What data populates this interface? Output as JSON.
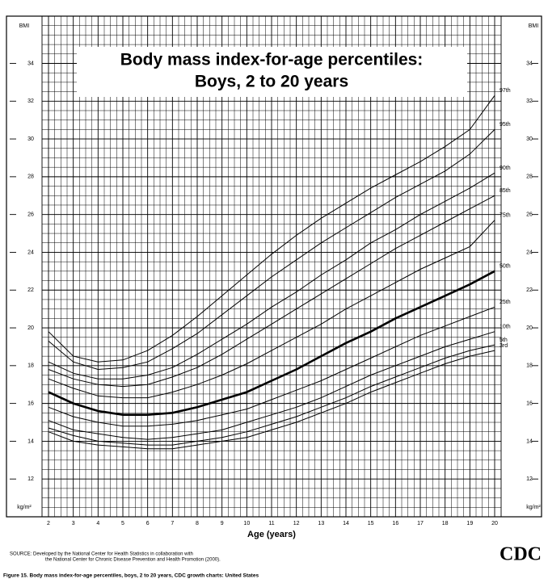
{
  "chart_data": {
    "type": "line",
    "title": [
      "Body mass index-for-age percentiles:",
      "Boys, 2 to 20 years"
    ],
    "xlabel": "Age (years)",
    "ylabel": "BMI",
    "yunit": "kg/m²",
    "x": [
      2,
      3,
      4,
      5,
      6,
      7,
      8,
      9,
      10,
      11,
      12,
      13,
      14,
      15,
      16,
      17,
      18,
      19,
      20
    ],
    "xlim": [
      2,
      20
    ],
    "xticks": [
      2,
      3,
      4,
      5,
      6,
      7,
      8,
      9,
      10,
      11,
      12,
      13,
      14,
      15,
      16,
      17,
      18,
      19,
      20
    ],
    "ylim": [
      10,
      36.5
    ],
    "yticks": [
      12,
      14,
      16,
      18,
      20,
      22,
      24,
      26,
      28,
      30,
      32,
      34
    ],
    "grid": true,
    "series": [
      {
        "name": "97th",
        "color": "#000",
        "values": [
          19.8,
          18.5,
          18.2,
          18.3,
          18.8,
          19.6,
          20.6,
          21.7,
          22.8,
          23.9,
          24.9,
          25.8,
          26.6,
          27.4,
          28.1,
          28.8,
          29.6,
          30.5,
          32.3
        ]
      },
      {
        "name": "95th",
        "color": "#000",
        "values": [
          19.3,
          18.2,
          17.8,
          17.9,
          18.2,
          18.9,
          19.7,
          20.7,
          21.7,
          22.7,
          23.6,
          24.5,
          25.3,
          26.1,
          26.9,
          27.6,
          28.3,
          29.2,
          30.5
        ]
      },
      {
        "name": "90th",
        "color": "#000",
        "values": [
          18.2,
          17.6,
          17.3,
          17.3,
          17.5,
          17.9,
          18.6,
          19.4,
          20.2,
          21.1,
          21.9,
          22.8,
          23.6,
          24.5,
          25.2,
          26.0,
          26.7,
          27.4,
          28.2
        ]
      },
      {
        "name": "85th",
        "color": "#000",
        "values": [
          17.8,
          17.3,
          17.0,
          16.9,
          17.0,
          17.4,
          17.9,
          18.6,
          19.4,
          20.2,
          21.0,
          21.8,
          22.6,
          23.4,
          24.2,
          24.9,
          25.6,
          26.3,
          27.0
        ]
      },
      {
        "name": "75th",
        "color": "#000",
        "values": [
          17.3,
          16.8,
          16.4,
          16.3,
          16.3,
          16.6,
          17.0,
          17.5,
          18.1,
          18.8,
          19.5,
          20.2,
          21.0,
          21.7,
          22.4,
          23.1,
          23.7,
          24.3,
          25.7
        ]
      },
      {
        "name": "50th",
        "color": "#000",
        "bold": true,
        "values": [
          16.6,
          16.0,
          15.6,
          15.4,
          15.4,
          15.5,
          15.8,
          16.2,
          16.6,
          17.2,
          17.8,
          18.5,
          19.2,
          19.8,
          20.5,
          21.1,
          21.7,
          22.3,
          23.0
        ]
      },
      {
        "name": "25th",
        "color": "#000",
        "values": [
          15.8,
          15.3,
          15.0,
          14.8,
          14.8,
          14.9,
          15.1,
          15.4,
          15.7,
          16.2,
          16.7,
          17.2,
          17.8,
          18.4,
          19.0,
          19.6,
          20.1,
          20.6,
          21.1
        ]
      },
      {
        "name": "10th",
        "color": "#000",
        "values": [
          15.1,
          14.6,
          14.4,
          14.2,
          14.1,
          14.2,
          14.4,
          14.6,
          15.0,
          15.4,
          15.8,
          16.3,
          16.9,
          17.5,
          18.0,
          18.5,
          19.0,
          19.4,
          19.8
        ]
      },
      {
        "name": "5th",
        "color": "#000",
        "values": [
          14.7,
          14.3,
          14.0,
          13.9,
          13.8,
          13.8,
          14.0,
          14.2,
          14.5,
          14.9,
          15.3,
          15.8,
          16.3,
          16.9,
          17.4,
          17.9,
          18.4,
          18.8,
          19.1
        ]
      },
      {
        "name": "3rd",
        "color": "#000",
        "values": [
          14.5,
          14.0,
          13.8,
          13.7,
          13.6,
          13.6,
          13.8,
          14.0,
          14.2,
          14.6,
          15.0,
          15.5,
          16.0,
          16.6,
          17.1,
          17.6,
          18.1,
          18.5,
          18.8
        ]
      }
    ]
  },
  "footer": {
    "source": [
      "SOURCE: Developed by the National Center for Health Statistics in collaboration with",
      "the National Center for Chronic Disease Prevention and Health Promotion (2000)."
    ],
    "logo": "CDC",
    "caption": "Figure 15. Body mass index-for-age percentiles, boys, 2 to 20 years, CDC growth charts: United States"
  }
}
